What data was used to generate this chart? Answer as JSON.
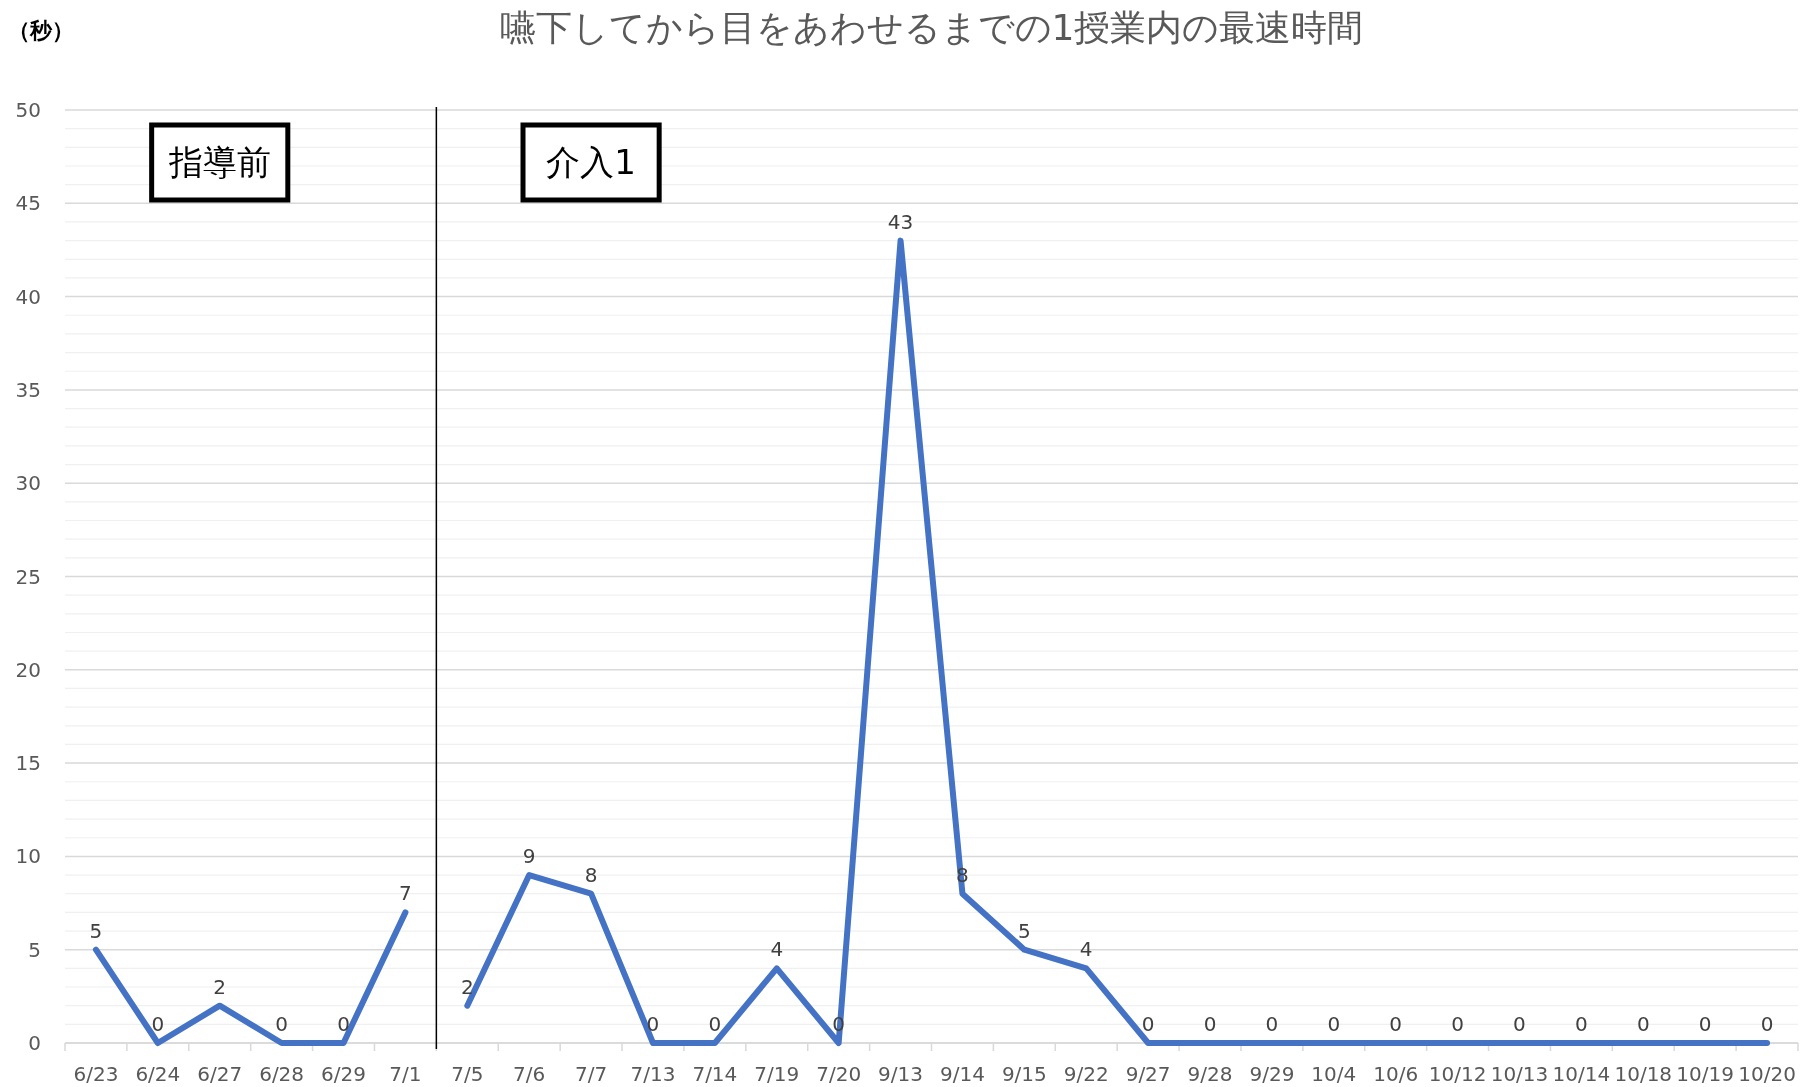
{
  "chart_data": {
    "type": "line",
    "title": "嚥下してから目をあわせるまでの1授業内の最速時間",
    "ylabel": "（秒）",
    "categories": [
      "6/23",
      "6/24",
      "6/27",
      "6/28",
      "6/29",
      "7/1",
      "7/5",
      "7/6",
      "7/7",
      "7/13",
      "7/14",
      "7/19",
      "7/20",
      "9/13",
      "9/14",
      "9/15",
      "9/22",
      "9/27",
      "9/28",
      "9/29",
      "10/4",
      "10/6",
      "10/12",
      "10/13",
      "10/14",
      "10/18",
      "10/19",
      "10/20"
    ],
    "series": [
      {
        "color": "#4472c4",
        "values": [
          5,
          0,
          2,
          0,
          0,
          7,
          null,
          null,
          null,
          null,
          null,
          null,
          null,
          null,
          null,
          null,
          null,
          null,
          null,
          null,
          null,
          null,
          null,
          null,
          null,
          null,
          null,
          null
        ]
      },
      {
        "color": "#4472c4",
        "values": [
          null,
          null,
          null,
          null,
          null,
          null,
          2,
          9,
          8,
          0,
          0,
          4,
          0,
          43,
          8,
          5,
          4,
          0,
          0,
          0,
          0,
          0,
          0,
          0,
          0,
          0,
          0,
          0
        ]
      }
    ],
    "ylim": [
      0,
      50
    ],
    "yticks": [
      0,
      5,
      10,
      15,
      20,
      25,
      30,
      35,
      40,
      45,
      50
    ],
    "grid": "y",
    "marker": "none",
    "line_style": "solid",
    "data_labels": true,
    "ref_lines": [
      {
        "axis": "x",
        "value": "7/5",
        "color": "#000000"
      }
    ],
    "annotations": [
      "指導前",
      "介入1"
    ]
  }
}
